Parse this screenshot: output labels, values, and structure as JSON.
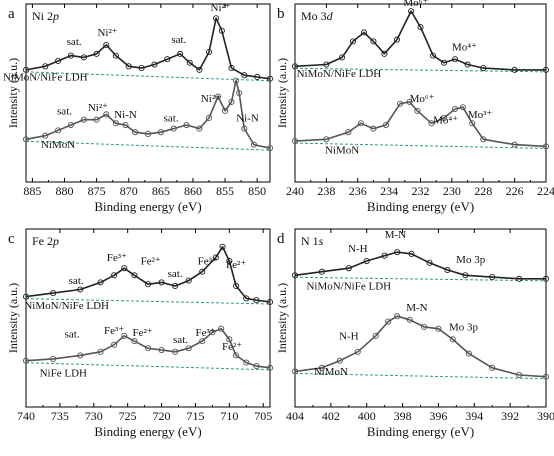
{
  "chart_data": [
    {
      "type": "line",
      "panel_letter": "a",
      "title": "Ni 2",
      "title_italic": "p",
      "xlabel": "Binding energy (eV)",
      "ylabel": "Intensity (a.u.)",
      "xlim": [
        886,
        848
      ],
      "ylim": [
        0,
        1
      ],
      "xticks": [
        885,
        880,
        875,
        870,
        865,
        860,
        855,
        850
      ],
      "tick_labels": [
        "885",
        "880",
        "875",
        "870",
        "865",
        "860",
        "855",
        "850"
      ],
      "series": [
        {
          "name": "NiMoN/NiFe LDH",
          "x": [
            886,
            883,
            881,
            879,
            877,
            875,
            873.5,
            872,
            870,
            868,
            866,
            864,
            862,
            860.5,
            859,
            857.5,
            856.4,
            855.5,
            854,
            852,
            850,
            848
          ],
          "y": [
            0.63,
            0.65,
            0.68,
            0.71,
            0.7,
            0.72,
            0.77,
            0.71,
            0.65,
            0.64,
            0.66,
            0.69,
            0.72,
            0.67,
            0.63,
            0.73,
            0.92,
            0.85,
            0.64,
            0.6,
            0.59,
            0.58
          ],
          "color": "#222222"
        },
        {
          "name": "NiMoN",
          "x": [
            886,
            883,
            881,
            879,
            877,
            875,
            873.5,
            872,
            870.5,
            869,
            867,
            865,
            863,
            861,
            859,
            857.5,
            856.1,
            855,
            854,
            853.3,
            852.8,
            852,
            850.5,
            848
          ],
          "y": [
            0.24,
            0.26,
            0.29,
            0.32,
            0.35,
            0.35,
            0.38,
            0.33,
            0.32,
            0.28,
            0.27,
            0.28,
            0.3,
            0.32,
            0.3,
            0.36,
            0.48,
            0.4,
            0.45,
            0.57,
            0.5,
            0.3,
            0.21,
            0.19
          ],
          "color": "#555555"
        }
      ],
      "annotations": [
        {
          "text": "sat.",
          "x": 878.5,
          "y": 0.77
        },
        {
          "text": "Ni²⁺",
          "x": 873.3,
          "y": 0.82
        },
        {
          "text": "sat.",
          "x": 862.2,
          "y": 0.78
        },
        {
          "text": "Ni²⁺",
          "x": 855.7,
          "y": 0.96
        },
        {
          "text": "NiMoN/NiFe LDH",
          "x": 883,
          "y": 0.57
        },
        {
          "text": "sat.",
          "x": 880,
          "y": 0.38
        },
        {
          "text": "Ni²⁺",
          "x": 874.8,
          "y": 0.4
        },
        {
          "text": "Ni-N",
          "x": 870.5,
          "y": 0.36
        },
        {
          "text": "sat.",
          "x": 863.4,
          "y": 0.34
        },
        {
          "text": "Ni²⁺",
          "x": 857.2,
          "y": 0.45
        },
        {
          "text": "Ni-N",
          "x": 851.5,
          "y": 0.34
        },
        {
          "text": "NiMoN",
          "x": 881,
          "y": 0.19
        }
      ]
    },
    {
      "type": "line",
      "panel_letter": "b",
      "title": "Mo 3",
      "title_italic": "d",
      "xlabel": "Binding energy (eV)",
      "ylabel": "Intensity (a.u.)",
      "xlim": [
        240,
        224
      ],
      "ylim": [
        0,
        1
      ],
      "xticks": [
        240,
        238,
        236,
        234,
        232,
        230,
        228,
        226,
        224
      ],
      "tick_labels": [
        "240",
        "238",
        "236",
        "234",
        "232",
        "230",
        "228",
        "226",
        "224"
      ],
      "series": [
        {
          "name": "NiMoN/NiFe LDH",
          "x": [
            240,
            238,
            237,
            236.3,
            235.6,
            235,
            234.3,
            233.5,
            232.6,
            232,
            231.2,
            230.5,
            229.8,
            229,
            228,
            226,
            224
          ],
          "y": [
            0.65,
            0.66,
            0.7,
            0.79,
            0.84,
            0.79,
            0.72,
            0.8,
            0.96,
            0.87,
            0.71,
            0.67,
            0.69,
            0.66,
            0.64,
            0.63,
            0.63
          ],
          "color": "#222222"
        },
        {
          "name": "NiMoN",
          "x": [
            240,
            238,
            236.6,
            235.8,
            235,
            234.2,
            233.3,
            232.7,
            232.2,
            231.3,
            230.5,
            229.8,
            229.3,
            228.7,
            228,
            226,
            224
          ],
          "y": [
            0.23,
            0.24,
            0.28,
            0.33,
            0.3,
            0.32,
            0.44,
            0.45,
            0.4,
            0.33,
            0.36,
            0.41,
            0.42,
            0.33,
            0.24,
            0.21,
            0.2
          ],
          "color": "#555555"
        }
      ],
      "annotations": [
        {
          "text": "Mo⁶⁺",
          "x": 232.3,
          "y": 0.99
        },
        {
          "text": "Mo⁴⁺",
          "x": 229.2,
          "y": 0.74
        },
        {
          "text": "NiMoN/NiFe LDH",
          "x": 237.2,
          "y": 0.59
        },
        {
          "text": "Mo⁶⁺",
          "x": 231.9,
          "y": 0.45
        },
        {
          "text": "Mo⁴⁺",
          "x": 230.4,
          "y": 0.33
        },
        {
          "text": "Mo³⁺",
          "x": 228.2,
          "y": 0.36
        },
        {
          "text": "NiMoN",
          "x": 237,
          "y": 0.16
        }
      ]
    },
    {
      "type": "line",
      "panel_letter": "c",
      "title": "Fe 2",
      "title_italic": "p",
      "xlabel": "Binding energy (eV)",
      "ylabel": "Intensity (a.u.)",
      "xlim": [
        740,
        704
      ],
      "ylim": [
        0,
        1
      ],
      "xticks": [
        740,
        735,
        730,
        725,
        720,
        715,
        710,
        705
      ],
      "tick_labels": [
        "740",
        "735",
        "730",
        "725",
        "720",
        "715",
        "710",
        "705"
      ],
      "series": [
        {
          "name": "NiMoN/NiFe LDH",
          "x": [
            740,
            736,
            732,
            729,
            727,
            725.5,
            724,
            722,
            720,
            718,
            716,
            714,
            712,
            711,
            710,
            709,
            707.5,
            706,
            704
          ],
          "y": [
            0.62,
            0.64,
            0.66,
            0.7,
            0.74,
            0.78,
            0.74,
            0.69,
            0.7,
            0.68,
            0.71,
            0.76,
            0.84,
            0.9,
            0.82,
            0.68,
            0.61,
            0.6,
            0.59
          ],
          "color": "#222222"
        },
        {
          "name": "NiFe LDH",
          "x": [
            740,
            736,
            732,
            729,
            727,
            725.5,
            724,
            722,
            720,
            718,
            716,
            714,
            712.5,
            711.2,
            710,
            709,
            707.5,
            706,
            704
          ],
          "y": [
            0.26,
            0.27,
            0.29,
            0.31,
            0.35,
            0.4,
            0.37,
            0.33,
            0.32,
            0.31,
            0.33,
            0.37,
            0.42,
            0.44,
            0.38,
            0.29,
            0.25,
            0.23,
            0.22
          ],
          "color": "#555555"
        }
      ],
      "annotations": [
        {
          "text": "sat.",
          "x": 732.6,
          "y": 0.69
        },
        {
          "text": "Fe³⁺",
          "x": 726.6,
          "y": 0.82
        },
        {
          "text": "Fe²⁺",
          "x": 721.6,
          "y": 0.8
        },
        {
          "text": "sat.",
          "x": 718,
          "y": 0.73
        },
        {
          "text": "Fe³⁺",
          "x": 713.2,
          "y": 0.8
        },
        {
          "text": "Fe²⁺",
          "x": 709,
          "y": 0.78
        },
        {
          "text": "NiMoN/NiFe LDH",
          "x": 734,
          "y": 0.55
        },
        {
          "text": "sat.",
          "x": 733.2,
          "y": 0.39
        },
        {
          "text": "Fe³⁺",
          "x": 727,
          "y": 0.41
        },
        {
          "text": "Fe²⁺",
          "x": 722.8,
          "y": 0.4
        },
        {
          "text": "sat.",
          "x": 717.2,
          "y": 0.36
        },
        {
          "text": "Fe³⁺",
          "x": 713.5,
          "y": 0.4
        },
        {
          "text": "Fe²⁺",
          "x": 709.6,
          "y": 0.32
        },
        {
          "text": "NiFe LDH",
          "x": 734.5,
          "y": 0.17
        }
      ]
    },
    {
      "type": "line",
      "panel_letter": "d",
      "title": "N 1",
      "title_italic": "s",
      "xlabel": "Binding energy (eV)",
      "ylabel": "Intensity (a.u.)",
      "xlim": [
        404,
        390
      ],
      "ylim": [
        0,
        1
      ],
      "xticks": [
        404,
        402,
        400,
        398,
        396,
        394,
        392,
        390
      ],
      "tick_labels": [
        "404",
        "402",
        "400",
        "398",
        "396",
        "394",
        "392",
        "390"
      ],
      "series": [
        {
          "name": "NiMoN/NiFe LDH",
          "x": [
            404,
            402.5,
            401,
            400,
            399,
            398.3,
            397.5,
            396.5,
            395.5,
            394.5,
            393,
            391.5,
            390
          ],
          "y": [
            0.74,
            0.76,
            0.78,
            0.82,
            0.85,
            0.87,
            0.86,
            0.81,
            0.77,
            0.74,
            0.73,
            0.72,
            0.72
          ],
          "color": "#222222"
        },
        {
          "name": "NiMoN",
          "x": [
            404,
            402.5,
            401.5,
            400.5,
            399.5,
            398.8,
            398.3,
            397.6,
            396.8,
            396,
            395.2,
            394.3,
            393,
            391.5,
            390
          ],
          "y": [
            0.2,
            0.22,
            0.26,
            0.31,
            0.4,
            0.48,
            0.51,
            0.49,
            0.45,
            0.44,
            0.38,
            0.3,
            0.22,
            0.18,
            0.17
          ],
          "color": "#555555"
        }
      ],
      "annotations": [
        {
          "text": "N-H",
          "x": 400.5,
          "y": 0.87
        },
        {
          "text": "M-N",
          "x": 398.4,
          "y": 0.95
        },
        {
          "text": "Mo 3p",
          "x": 394.2,
          "y": 0.81
        },
        {
          "text": "NiMoN/NiFe LDH",
          "x": 401,
          "y": 0.66
        },
        {
          "text": "N-H",
          "x": 401,
          "y": 0.38
        },
        {
          "text": "M-N",
          "x": 397.2,
          "y": 0.54
        },
        {
          "text": "Mo 3p",
          "x": 394.6,
          "y": 0.43
        },
        {
          "text": "NiMoN",
          "x": 402,
          "y": 0.18
        }
      ]
    }
  ]
}
